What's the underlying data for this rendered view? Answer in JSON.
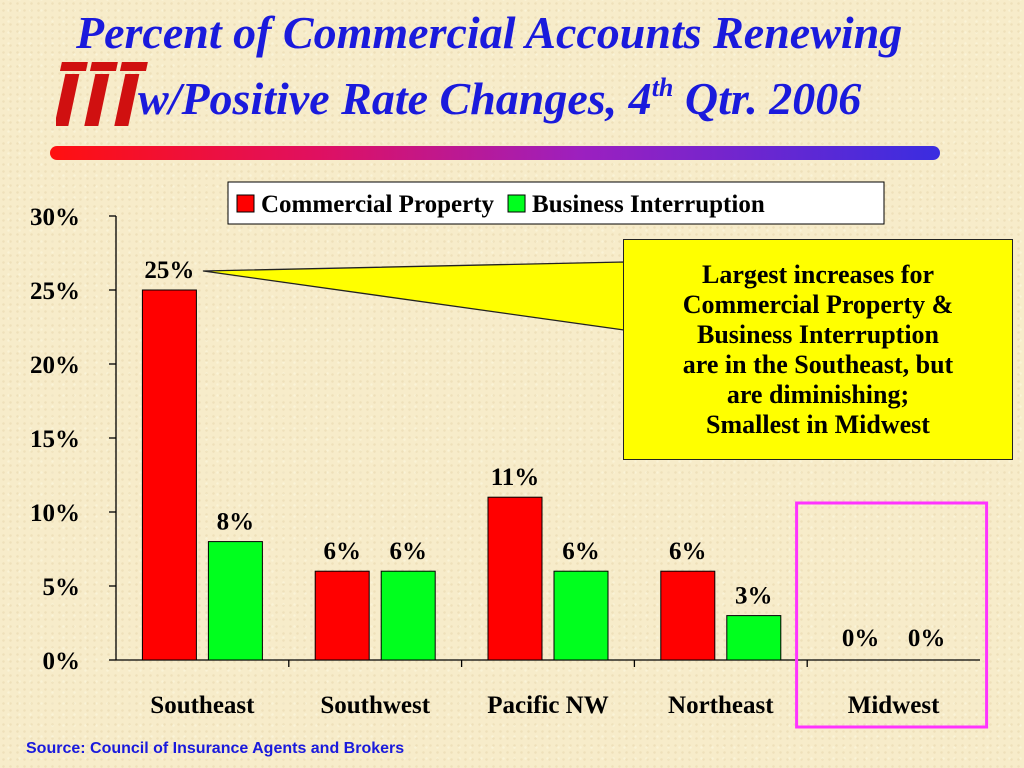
{
  "title": {
    "line1": "Percent of Commercial Accounts Renewing",
    "line2_main": "w/Positive Rate Changes, 4",
    "line2_sup": "th",
    "line2_end": " Qtr. 2006"
  },
  "logo": {
    "text": "iii",
    "color": "#d01010"
  },
  "callout": {
    "lines": [
      "Largest increases for",
      "Commercial Property &",
      "Business Interruption",
      "are in the Southeast, but",
      "are diminishing;",
      "Smallest in Midwest"
    ]
  },
  "source": "Source: Council of Insurance Agents and Brokers",
  "colors": {
    "commercial_property": "#ff0000",
    "business_interruption": "#00ff1e",
    "highlight_box": "#ff33ff",
    "title": "#1a1adc"
  },
  "chart_data": {
    "type": "bar",
    "categories": [
      "Southeast",
      "Southwest",
      "Pacific NW",
      "Northeast",
      "Midwest"
    ],
    "series": [
      {
        "name": "Commercial Property",
        "values": [
          25,
          6,
          11,
          6,
          0
        ]
      },
      {
        "name": "Business Interruption",
        "values": [
          8,
          6,
          6,
          3,
          0
        ]
      }
    ],
    "data_labels": [
      [
        "25%",
        "6%",
        "11%",
        "6%",
        "0%"
      ],
      [
        "8%",
        "6%",
        "6%",
        "3%",
        "0%"
      ]
    ],
    "y_ticks": [
      "0%",
      "5%",
      "10%",
      "15%",
      "20%",
      "25%",
      "30%"
    ],
    "ylim": [
      0,
      30
    ],
    "legend_position": "top",
    "highlighted_category": "Midwest",
    "grid": false
  }
}
